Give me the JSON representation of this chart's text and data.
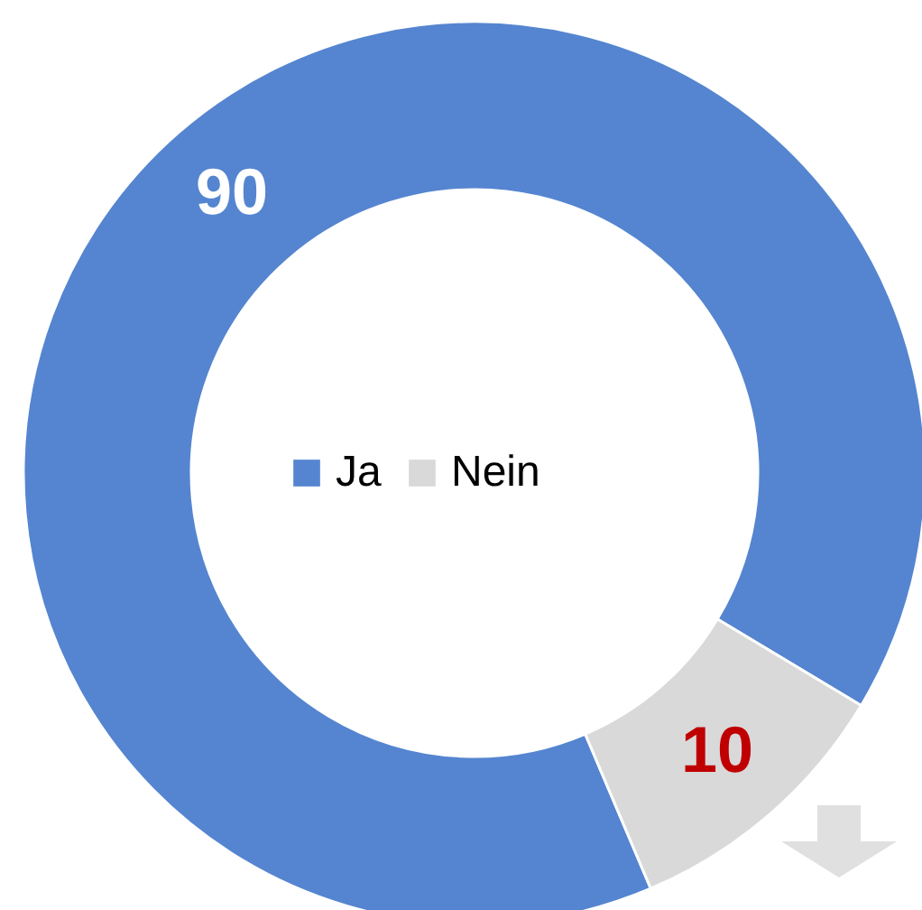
{
  "chart_data": {
    "type": "donut",
    "categories": [
      "Ja",
      "Nein"
    ],
    "values": [
      90,
      10
    ],
    "colors": [
      "#5585d0",
      "#d9d9d9"
    ],
    "data_labels": true,
    "legend": "center"
  }
}
